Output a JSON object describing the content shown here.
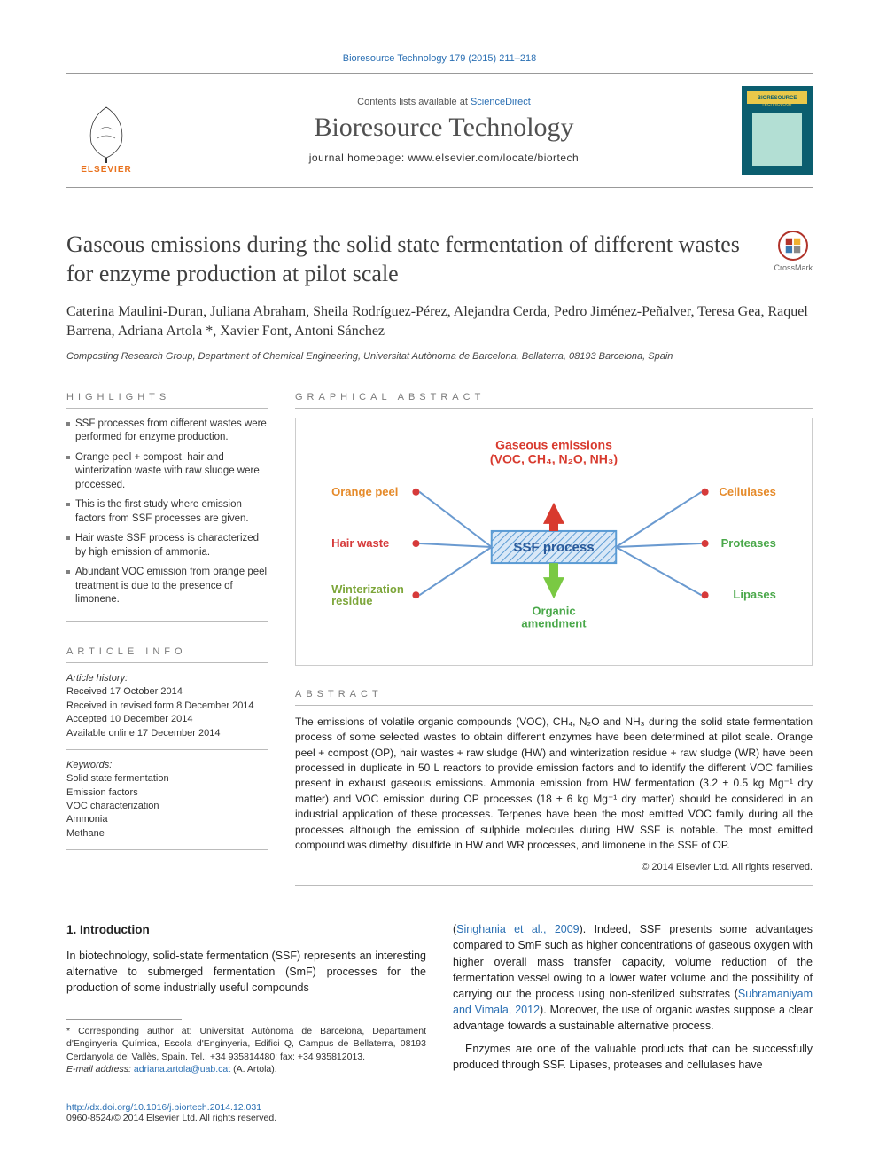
{
  "top_citation": "Bioresource Technology 179 (2015) 211–218",
  "header": {
    "contents_pre": "Contents lists available at ",
    "contents_link": "ScienceDirect",
    "journal_title": "Bioresource Technology",
    "homepage_label": "journal homepage: www.elsevier.com/locate/biortech",
    "publisher": "ELSEVIER",
    "cover_color": "#0b5e6f"
  },
  "crossmark_label": "CrossMark",
  "article": {
    "title": "Gaseous emissions during the solid state fermentation of different wastes for enzyme production at pilot scale",
    "authors_html": "Caterina Maulini-Duran, Juliana Abraham, Sheila Rodríguez-Pérez, Alejandra Cerda, Pedro Jiménez-Peñalver, Teresa Gea, Raquel Barrena, Adriana Artola *, Xavier Font, Antoni Sánchez",
    "affiliation": "Composting Research Group, Department of Chemical Engineering, Universitat Autònoma de Barcelona, Bellaterra, 08193 Barcelona, Spain"
  },
  "highlights": {
    "heading": "HIGHLIGHTS",
    "items": [
      "SSF processes from different wastes were performed for enzyme production.",
      "Orange peel + compost, hair and winterization waste with raw sludge were processed.",
      "This is the first study where emission factors from SSF processes are given.",
      "Hair waste SSF process is characterized by high emission of ammonia.",
      "Abundant VOC emission from orange peel treatment is due to the presence of limonene."
    ]
  },
  "graphical": {
    "heading": "GRAPHICAL ABSTRACT",
    "top_label": "Gaseous emissions\n(VOC, CH₄, N₂O, NH₃)",
    "center_label": "SSF process",
    "bottom_label": "Organic\namendment",
    "left_nodes": [
      "Orange peel",
      "Hair waste",
      "Winterization\nresidue"
    ],
    "right_nodes": [
      "Cellulases",
      "Proteases",
      "Lipases"
    ],
    "colors": {
      "top_label": "#d83a2e",
      "orange_peel": "#e58a2a",
      "hair_waste": "#d63a3a",
      "winterization": "#7da63a",
      "center_border": "#5a9bd4",
      "center_fill": "#d9e8f7",
      "cellulases": "#e58a2a",
      "proteases": "#4aa84a",
      "lipases": "#4aa84a",
      "bottom_label": "#4aa84a",
      "bullet": "#d63a3a",
      "arrow_up": "#d83a2e",
      "arrow_down": "#7ac943",
      "line": "#6a9ad0"
    }
  },
  "article_info": {
    "heading": "ARTICLE INFO",
    "history_label": "Article history:",
    "history": [
      "Received 17 October 2014",
      "Received in revised form 8 December 2014",
      "Accepted 10 December 2014",
      "Available online 17 December 2014"
    ],
    "keywords_label": "Keywords:",
    "keywords": [
      "Solid state fermentation",
      "Emission factors",
      "VOC characterization",
      "Ammonia",
      "Methane"
    ]
  },
  "abstract": {
    "heading": "ABSTRACT",
    "text": "The emissions of volatile organic compounds (VOC), CH₄, N₂O and NH₃ during the solid state fermentation process of some selected wastes to obtain different enzymes have been determined at pilot scale. Orange peel + compost (OP), hair wastes + raw sludge (HW) and winterization residue + raw sludge (WR) have been processed in duplicate in 50 L reactors to provide emission factors and to identify the different VOC families present in exhaust gaseous emissions. Ammonia emission from HW fermentation (3.2 ± 0.5 kg Mg⁻¹ dry matter) and VOC emission during OP processes (18 ± 6 kg Mg⁻¹ dry matter) should be considered in an industrial application of these processes. Terpenes have been the most emitted VOC family during all the processes although the emission of sulphide molecules during HW SSF is notable. The most emitted compound was dimethyl disulfide in HW and WR processes, and limonene in the SSF of OP.",
    "copyright": "© 2014 Elsevier Ltd. All rights reserved."
  },
  "body": {
    "section_title": "1. Introduction",
    "left_para": "In biotechnology, solid-state fermentation (SSF) represents an interesting alternative to submerged fermentation (SmF) processes for the production of some industrially useful compounds",
    "right_para_1_pre": "(",
    "right_para_1_link": "Singhania et al., 2009",
    "right_para_1_post": "). Indeed, SSF presents some advantages compared to SmF such as higher concentrations of gaseous oxygen with higher overall mass transfer capacity, volume reduction of the fermentation vessel owing to a lower water volume and the possibility of carrying out the process using non-sterilized substrates (",
    "right_para_1_link2": "Subramaniyam and Vimala, 2012",
    "right_para_1_post2": "). Moreover, the use of organic wastes suppose a clear advantage towards a sustainable alternative process.",
    "right_para_2": "Enzymes are one of the valuable products that can be successfully produced through SSF. Lipases, proteases and cellulases have"
  },
  "footnote": {
    "star": "* Corresponding author at: Universitat Autònoma de Barcelona, Departament d'Enginyeria Química, Escola d'Enginyeria, Edifici Q, Campus de Bellaterra, 08193 Cerdanyola del Vallès, Spain. Tel.: +34 935814480; fax: +34 935812013.",
    "email_label": "E-mail address: ",
    "email": "adriana.artola@uab.cat",
    "email_post": " (A. Artola)."
  },
  "footer": {
    "doi": "http://dx.doi.org/10.1016/j.biortech.2014.12.031",
    "issn_line": "0960-8524/© 2014 Elsevier Ltd. All rights reserved."
  }
}
